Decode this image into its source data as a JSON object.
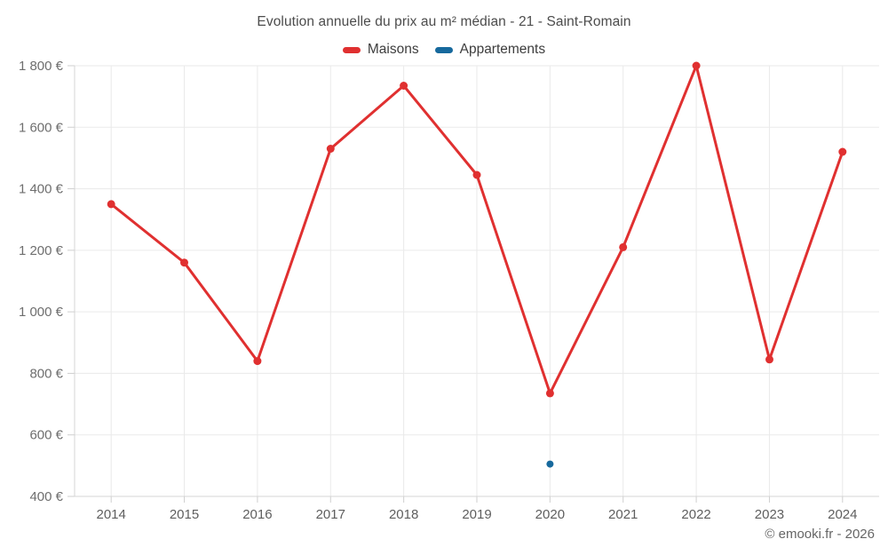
{
  "header": {
    "title": "Evolution annuelle du prix au m² médian - 21 - Saint-Romain"
  },
  "footer": {
    "credit": "© emooki.fr - 2026"
  },
  "chart_data": {
    "type": "line",
    "title": "Evolution annuelle du prix au m² médian - 21 - Saint-Romain",
    "xlabel": "",
    "ylabel": "",
    "categories": [
      "2014",
      "2015",
      "2016",
      "2017",
      "2018",
      "2019",
      "2020",
      "2021",
      "2022",
      "2023",
      "2024"
    ],
    "series": [
      {
        "name": "Maisons",
        "color": "#e03030",
        "point_radius": 4.5,
        "values": [
          1350,
          1160,
          840,
          1530,
          1735,
          1445,
          735,
          1210,
          1800,
          845,
          1520
        ]
      },
      {
        "name": "Appartements",
        "color": "#17699d",
        "point_radius": 4,
        "values": [
          null,
          null,
          null,
          null,
          null,
          null,
          505,
          null,
          null,
          null,
          null
        ]
      }
    ],
    "ylim": [
      400,
      1800
    ],
    "yticks": [
      {
        "value": 400,
        "label": "400 €"
      },
      {
        "value": 600,
        "label": "600 €"
      },
      {
        "value": 800,
        "label": "800 €"
      },
      {
        "value": 1000,
        "label": "1 000 €"
      },
      {
        "value": 1200,
        "label": "1 200 €"
      },
      {
        "value": 1400,
        "label": "1 400 €"
      },
      {
        "value": 1600,
        "label": "1 600 €"
      },
      {
        "value": 1800,
        "label": "1 800 €"
      }
    ],
    "grid": true,
    "legend_position": "top",
    "colors": {
      "grid": "#eaeaea",
      "axis": "#d4d4d4",
      "tick": "#cfcfcf"
    }
  }
}
